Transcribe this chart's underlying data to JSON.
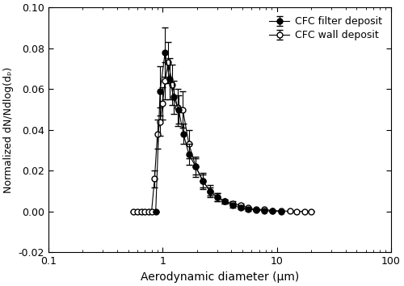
{
  "title": "",
  "xlabel": "Aerodynamic diameter (μm)",
  "ylabel": "Normalized dN/Ndlog(dₚ)",
  "xlim": [
    0.1,
    100
  ],
  "ylim": [
    -0.02,
    0.1
  ],
  "yticks": [
    -0.02,
    0.0,
    0.02,
    0.04,
    0.06,
    0.08,
    0.1
  ],
  "legend1": "CFC filter deposit",
  "legend2": "CFC wall deposit",
  "filter_x": [
    0.87,
    0.95,
    1.05,
    1.15,
    1.25,
    1.38,
    1.52,
    1.7,
    1.95,
    2.25,
    2.6,
    3.0,
    3.5,
    4.1,
    4.8,
    5.6,
    6.6,
    7.8,
    9.2,
    11.0
  ],
  "filter_y": [
    0.0,
    0.059,
    0.078,
    0.065,
    0.056,
    0.05,
    0.038,
    0.028,
    0.022,
    0.015,
    0.01,
    0.007,
    0.005,
    0.003,
    0.002,
    0.001,
    0.0008,
    0.0005,
    0.0002,
    0.0001
  ],
  "filter_yerr": [
    0.0,
    0.012,
    0.012,
    0.01,
    0.008,
    0.007,
    0.005,
    0.005,
    0.004,
    0.003,
    0.002,
    0.002,
    0.001,
    0.001,
    0.001,
    0.0005,
    0.0003,
    0.0002,
    0.0001,
    0.0001
  ],
  "wall_x": [
    0.55,
    0.6,
    0.65,
    0.7,
    0.75,
    0.8,
    0.85,
    0.9,
    0.95,
    1.0,
    1.05,
    1.12,
    1.22,
    1.35,
    1.5,
    1.7,
    1.95,
    2.25,
    2.6,
    3.0,
    3.5,
    4.1,
    4.8,
    5.6,
    6.6,
    7.8,
    9.2,
    11.0,
    13.0,
    15.0,
    17.5,
    20.0
  ],
  "wall_y": [
    0.0,
    0.0,
    0.0,
    0.0,
    0.0,
    0.0,
    0.016,
    0.038,
    0.044,
    0.053,
    0.064,
    0.073,
    0.062,
    0.051,
    0.05,
    0.033,
    0.022,
    0.015,
    0.01,
    0.007,
    0.005,
    0.004,
    0.003,
    0.002,
    0.001,
    0.001,
    0.0005,
    0.0003,
    0.0002,
    0.0001,
    0.0001,
    0.0001
  ],
  "wall_yerr": [
    0.0,
    0.0,
    0.0,
    0.0,
    0.0,
    0.0,
    0.004,
    0.007,
    0.007,
    0.008,
    0.009,
    0.01,
    0.01,
    0.009,
    0.009,
    0.007,
    0.005,
    0.004,
    0.003,
    0.002,
    0.001,
    0.001,
    0.001,
    0.0005,
    0.0004,
    0.0003,
    0.0002,
    0.0001,
    0.0001,
    0.0001,
    0.0001,
    0.0001
  ],
  "line_color": "#000000",
  "marker_size": 5,
  "capsize": 3,
  "elinewidth": 0.8,
  "linewidth": 0.8,
  "figwidth": 5.0,
  "figheight": 3.54,
  "dpi": 100
}
